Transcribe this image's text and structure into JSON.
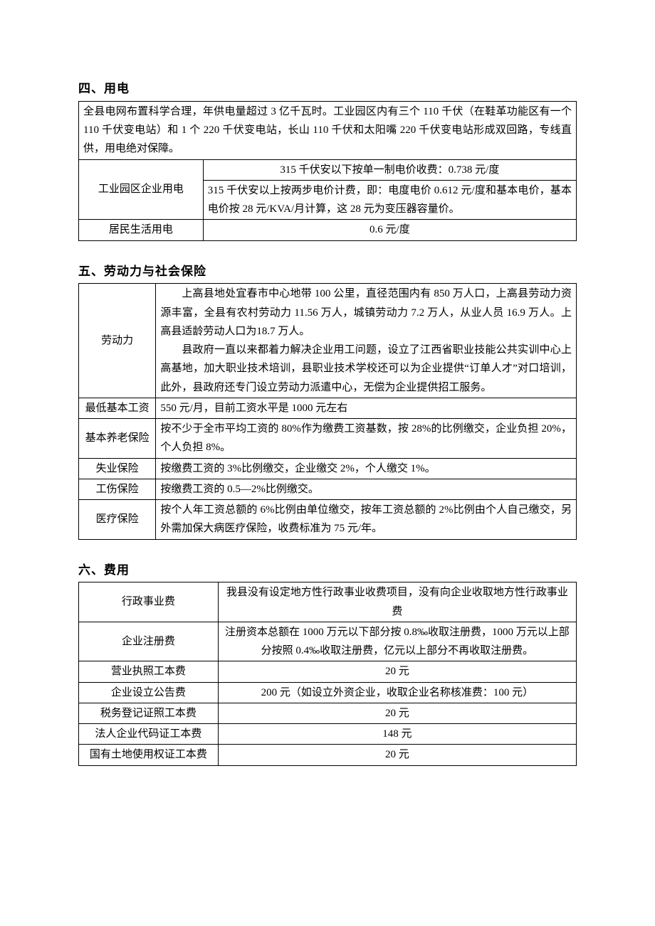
{
  "section4": {
    "heading": "四、用电",
    "intro": "全县电网布置科学合理，年供电量超过 3 亿千瓦时。工业园区内有三个 110 千伏（在鞋革功能区有一个 110 千伏变电站）和 1 个 220 千伏变电站，长山 110 千伏和太阳嘴 220 千伏变电站形成双回路，专线直供，用电绝对保障。",
    "row1_label": "工业园区企业用电",
    "row1_a": "315 千伏安以下按单一制电价收费：0.738 元/度",
    "row1_b": "315 千伏安以上按两步电价计费，即：电度电价 0.612 元/度和基本电价，基本电价按 28 元/KVA/月计算，这 28 元为变压器容量价。",
    "row2_label": "居民生活用电",
    "row2_val": "0.6 元/度"
  },
  "section5": {
    "heading": "五、劳动力与社会保险",
    "labor_label": "劳动力",
    "labor_p1": "上高县地处宜春市中心地带 100 公里，直径范围内有 850 万人口，上高县劳动力资源丰富，全县有农村劳动力 11.56 万人，城镇劳动力 7.2 万人，从业人员 16.9 万人。上高县适龄劳动人口为18.7 万人。",
    "labor_p2": "县政府一直以来都着力解决企业用工问题，设立了江西省职业技能公共实训中心上高基地，加大职业技术培训，县职业技术学校还可以为企业提供“订单人才”对口培训，此外，县政府还专门设立劳动力派遣中心，无偿为企业提供招工服务。",
    "minwage_label": "最低基本工资",
    "minwage_val": "550 元/月，目前工资水平是 1000 元左右",
    "pension_label": "基本养老保险",
    "pension_val": "按不少于全市平均工资的 80%作为缴费工资基数，按 28%的比例缴交，企业负担 20%，个人负担 8%。",
    "unemploy_label": "失业保险",
    "unemploy_val": "按缴费工资的 3%比例缴交，企业缴交 2%，个人缴交 1%。",
    "injury_label": "工伤保险",
    "injury_val": "按缴费工资的 0.5—2%比例缴交。",
    "medical_label": "医疗保险",
    "medical_val": "按个人年工资总额的 6%比例由单位缴交，按年工资总额的 2%比例由个人自己缴交，另外需加保大病医疗保险，收费标准为 75 元/年。"
  },
  "section6": {
    "heading": "六、费用",
    "admin_label": "行政事业费",
    "admin_val": "我县没有设定地方性行政事业收费项目，没有向企业收取地方性行政事业费",
    "reg_label": "企业注册费",
    "reg_val": "注册资本总额在 1000 万元以下部分按 0.8‰收取注册费，1000 万元以上部分按照 0.4‰收取注册费，亿元以上部分不再收取注册费。",
    "license_label": "营业执照工本费",
    "license_val": "20 元",
    "announce_label": "企业设立公告费",
    "announce_val": "200 元（如设立外资企业，收取企业名称核准费：100 元）",
    "tax_label": "税务登记证照工本费",
    "tax_val": "20 元",
    "code_label": "法人企业代码证工本费",
    "code_val": "148 元",
    "land_label": "国有土地使用权证工本费",
    "land_val": "20 元"
  }
}
